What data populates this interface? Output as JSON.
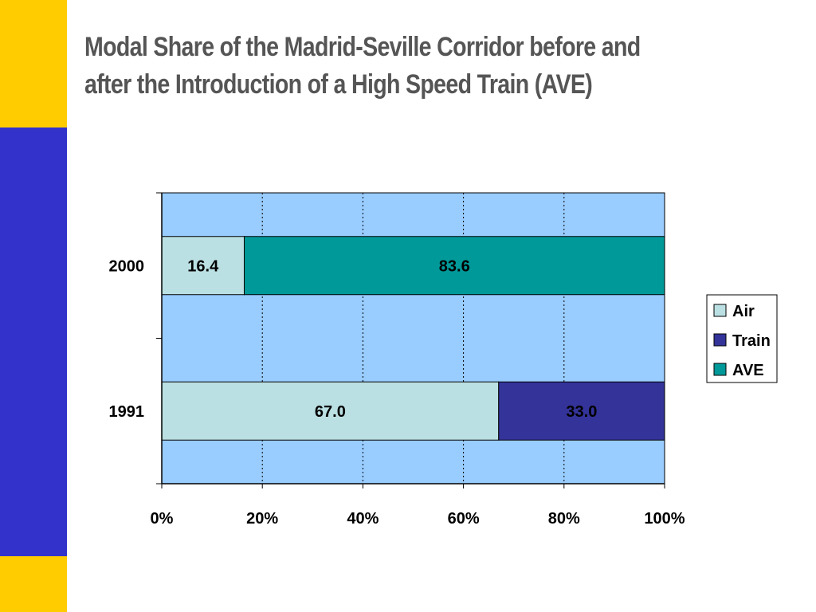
{
  "theme": {
    "sidebar_top_color": "#FFCC00",
    "sidebar_mid_color": "#3333CC",
    "sidebar_bottom_color": "#FFCC00",
    "title_color": "#555555",
    "plot_bg_color": "#99CCFF"
  },
  "title": {
    "line1": "Modal Share of the Madrid-Seville Corridor before and",
    "line2": "after the Introduction of a High Speed Train (AVE)"
  },
  "chart_data": {
    "type": "bar",
    "orientation": "horizontal",
    "stacked": "percent",
    "categories": [
      "2000",
      "1991"
    ],
    "series": [
      {
        "name": "Air",
        "color": "#BBE0E3",
        "values": [
          16.4,
          67.0
        ]
      },
      {
        "name": "Train",
        "color": "#333399",
        "values": [
          0,
          33.0
        ]
      },
      {
        "name": "AVE",
        "color": "#009999",
        "values": [
          83.6,
          0
        ]
      }
    ],
    "data_labels": [
      {
        "category": "2000",
        "series": "Air",
        "text": "16.4"
      },
      {
        "category": "2000",
        "series": "AVE",
        "text": "83.6"
      },
      {
        "category": "1991",
        "series": "Air",
        "text": "67.0"
      },
      {
        "category": "1991",
        "series": "Train",
        "text": "33.0"
      }
    ],
    "x_ticks": [
      "0%",
      "20%",
      "40%",
      "60%",
      "80%",
      "100%"
    ],
    "xlim": [
      0,
      100
    ],
    "xlabel": "",
    "ylabel": "",
    "grid": "vertical dotted",
    "legend": {
      "position": "right",
      "entries": [
        "Air",
        "Train",
        "AVE"
      ]
    }
  }
}
